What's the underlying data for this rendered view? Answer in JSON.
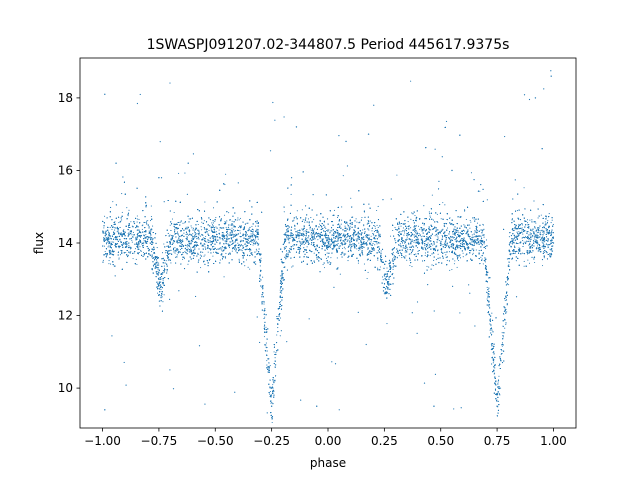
{
  "chart_data": {
    "type": "scatter",
    "title": "1SWASPJ091207.02-344807.5 Period 445617.9375s",
    "xlabel": "phase",
    "ylabel": "flux",
    "xlim": [
      -1.1,
      1.1
    ],
    "ylim": [
      8.9,
      19.1
    ],
    "xticks": [
      -1.0,
      -0.75,
      -0.5,
      -0.25,
      0.0,
      0.25,
      0.5,
      0.75,
      1.0
    ],
    "xtick_labels": [
      "−1.00",
      "−0.75",
      "−0.50",
      "−0.25",
      "0.00",
      "0.25",
      "0.50",
      "0.75",
      "1.00"
    ],
    "yticks": [
      10,
      12,
      14,
      16,
      18
    ],
    "ytick_labels": [
      "10",
      "12",
      "14",
      "16",
      "18"
    ],
    "grid": false,
    "point_color": "#1f77b4",
    "light_curve": {
      "baseline_flux": 14.1,
      "primary_eclipse": {
        "phase": -0.25,
        "min_flux": 9.5,
        "halfwidth": 0.06
      },
      "secondary_eclipse": {
        "phase": -0.74,
        "min_flux": 12.8,
        "halfwidth": 0.045
      },
      "scatter": 0.32,
      "points_per_cycle": 7000
    },
    "series": [
      {
        "values": [
          [
            -0.98,
            14.1
          ],
          [
            -0.9,
            14.2
          ],
          [
            -0.8,
            14.1
          ],
          [
            -0.74,
            12.8
          ],
          [
            -0.65,
            14.2
          ],
          [
            -0.5,
            14.1
          ],
          [
            -0.35,
            14.0
          ],
          [
            -0.29,
            12.8
          ],
          [
            -0.25,
            9.5
          ],
          [
            -0.21,
            12.5
          ],
          [
            -0.1,
            14.1
          ],
          [
            0.0,
            14.1
          ],
          [
            0.1,
            14.2
          ],
          [
            0.26,
            12.8
          ],
          [
            0.35,
            14.1
          ],
          [
            0.5,
            14.0
          ],
          [
            0.65,
            14.0
          ],
          [
            0.71,
            12.6
          ],
          [
            0.75,
            9.5
          ],
          [
            0.79,
            12.5
          ],
          [
            0.9,
            14.1
          ],
          [
            1.0,
            14.0
          ],
          [
            -0.99,
            18.1
          ],
          [
            0.99,
            18.6
          ],
          [
            0.92,
            18.0
          ],
          [
            -0.14,
            17.2
          ],
          [
            0.18,
            17.0
          ],
          [
            0.08,
            16.8
          ],
          [
            -0.62,
            16.2
          ],
          [
            -0.99,
            9.4
          ],
          [
            0.47,
            9.5
          ],
          [
            -0.05,
            9.5
          ],
          [
            0.95,
            16.6
          ],
          [
            -0.94,
            16.2
          ],
          [
            -0.75,
            15.8
          ],
          [
            0.55,
            16.0
          ]
        ]
      }
    ]
  }
}
